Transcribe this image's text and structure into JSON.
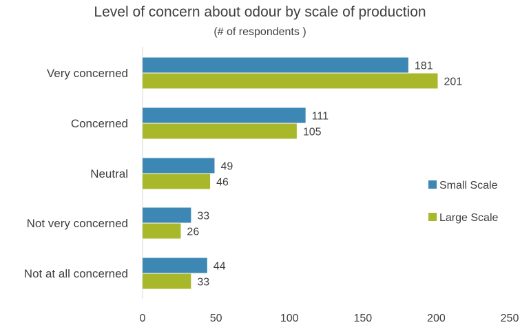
{
  "chart_data": {
    "type": "bar",
    "orientation": "horizontal",
    "title": "Level of concern about odour by scale of production",
    "subtitle": "(# of respondents )",
    "categories": [
      "Very concerned",
      "Concerned",
      "Neutral",
      "Not very concerned",
      "Not at all concerned"
    ],
    "series": [
      {
        "name": "Small Scale",
        "color": "#3d87b4",
        "values": [
          181,
          111,
          49,
          33,
          44
        ]
      },
      {
        "name": "Large Scale",
        "color": "#a8b82a",
        "values": [
          201,
          105,
          46,
          26,
          33
        ]
      }
    ],
    "xlim": [
      0,
      250
    ],
    "xticks": [
      0,
      50,
      100,
      150,
      200,
      250
    ],
    "xlabel": "",
    "ylabel": "",
    "grid": false,
    "legend_position": "right"
  }
}
